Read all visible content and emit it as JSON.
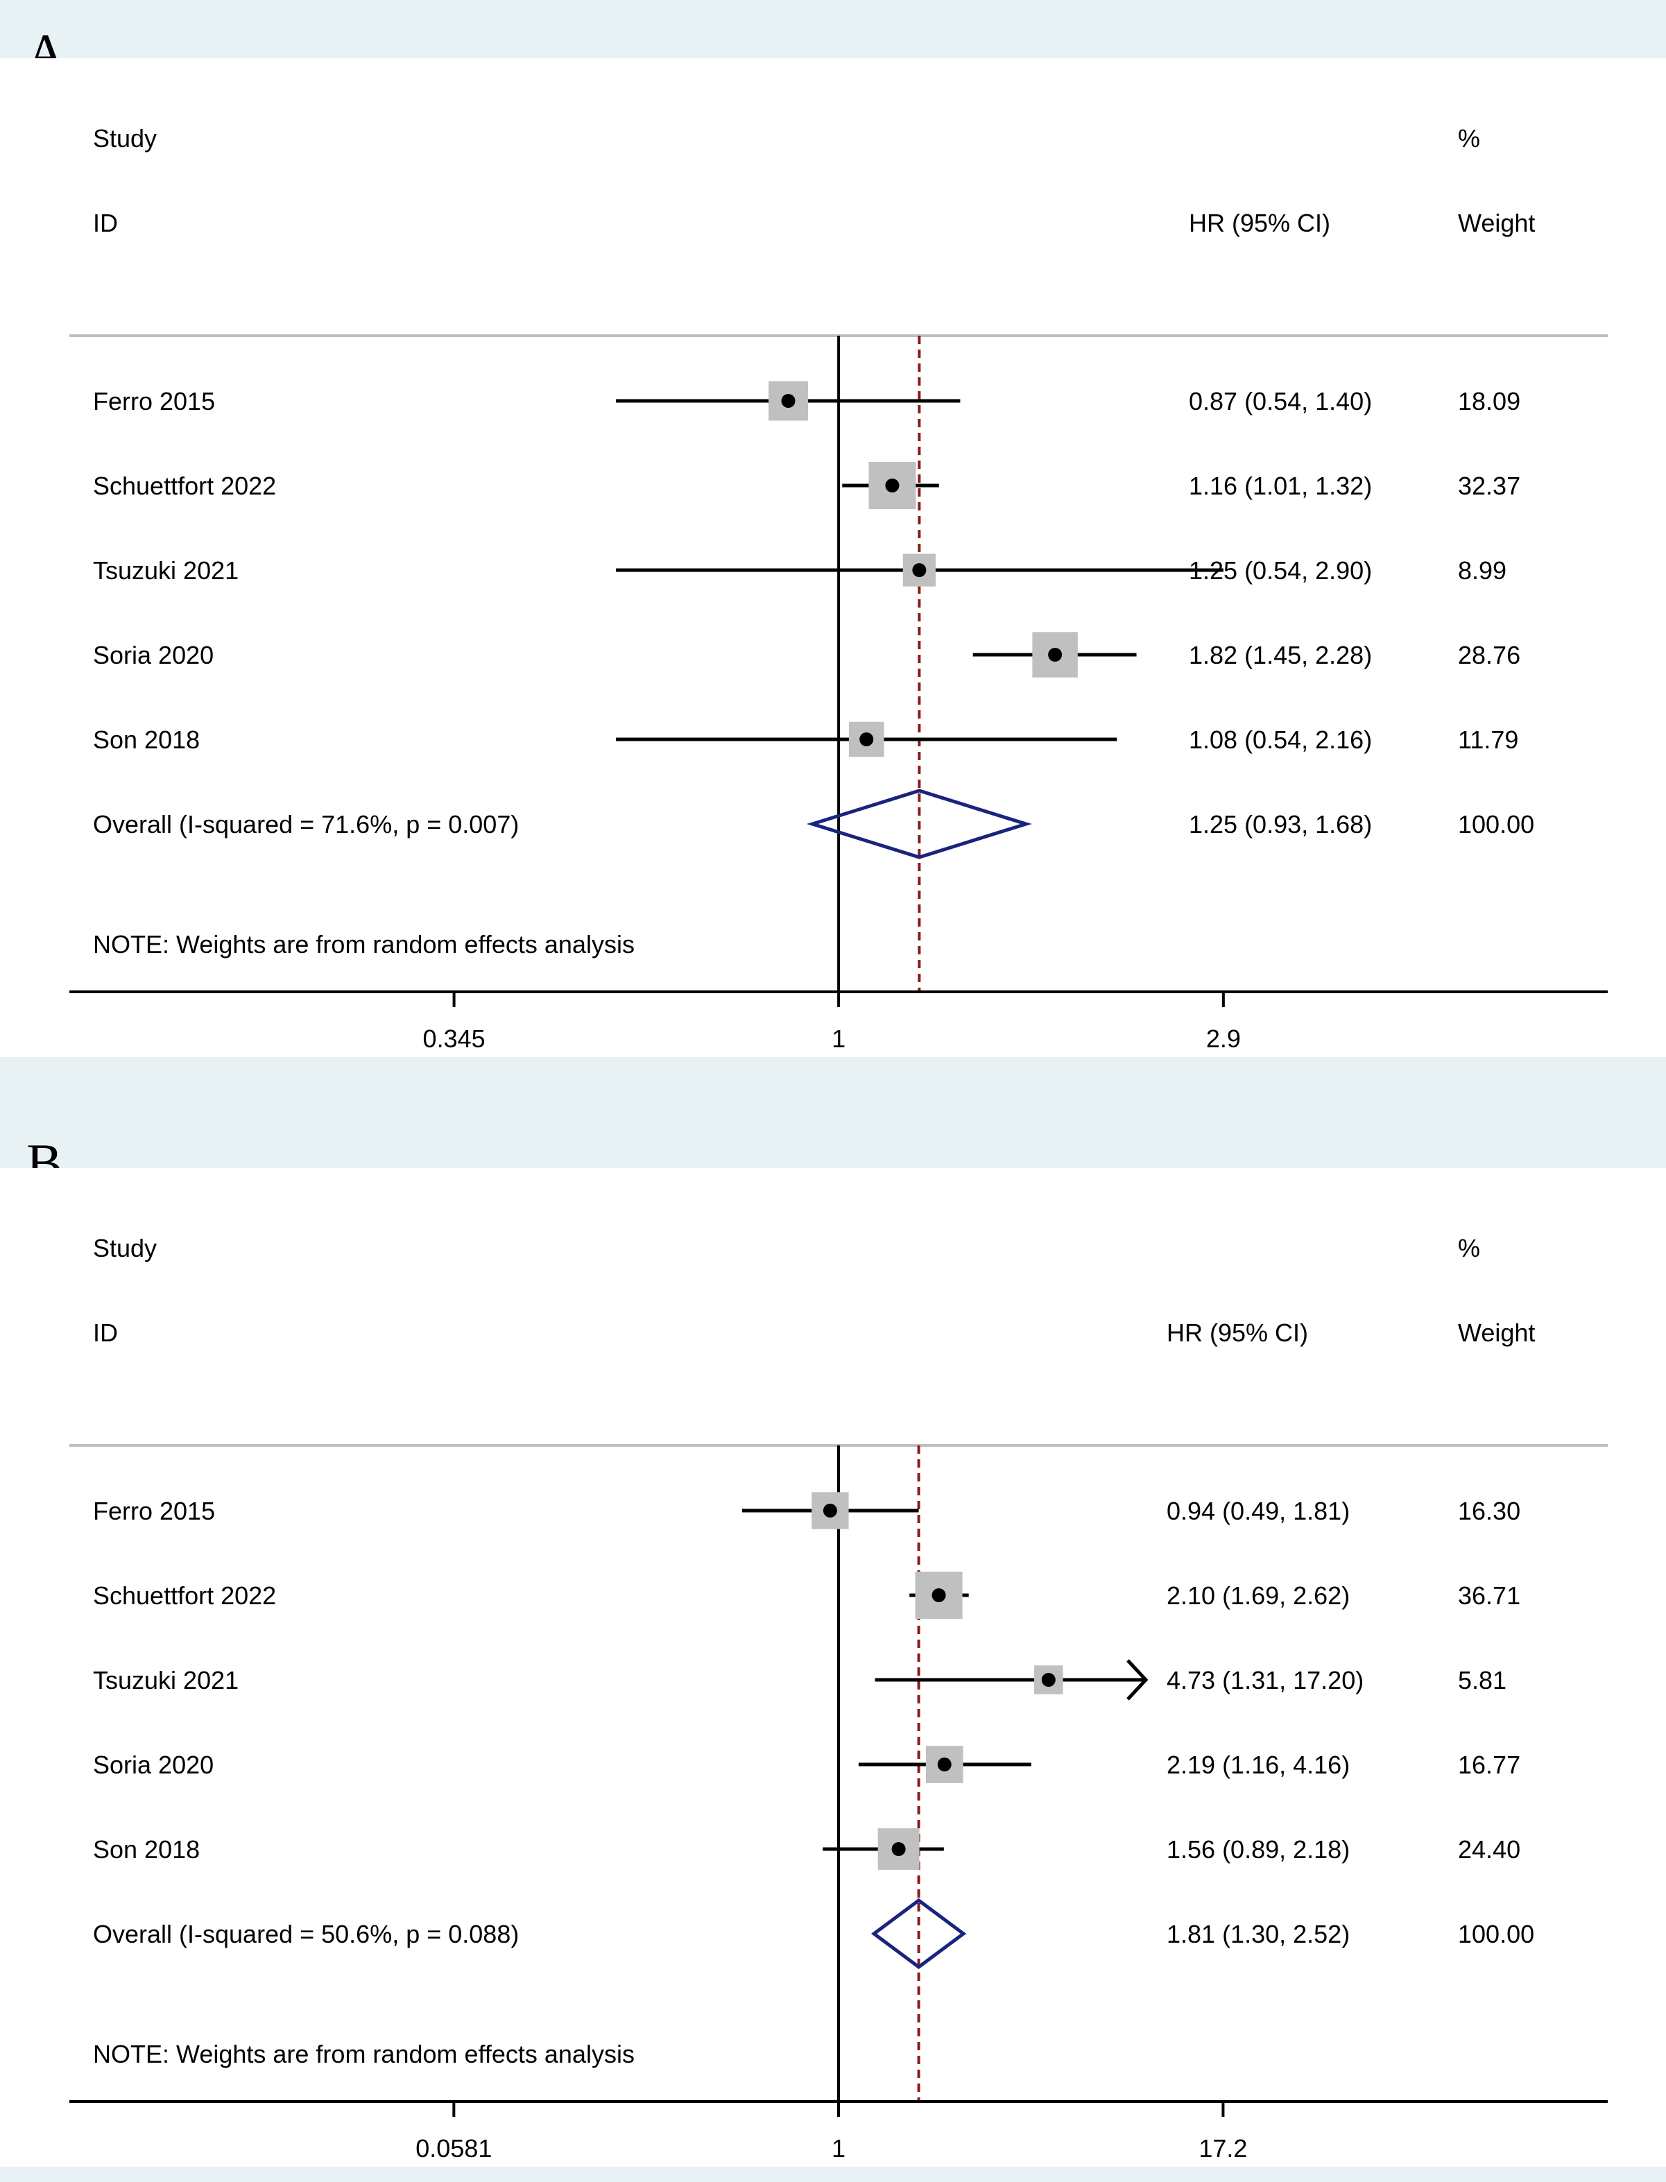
{
  "chart_data": [
    {
      "type": "forest",
      "panel_label": "A",
      "header": {
        "study": "Study",
        "id": "ID",
        "effect": "HR (95% CI)",
        "weight_pct": "%",
        "weight": "Weight"
      },
      "x_scale": "log",
      "xlim": [
        0.119,
        8.4
      ],
      "x_ticks": [
        "0.345",
        "1",
        "2.9"
      ],
      "null_line": 1,
      "studies": [
        {
          "name": "Ferro 2015",
          "hr": 0.87,
          "lo": 0.54,
          "hi": 1.4,
          "ci_text": "0.87 (0.54, 1.40)",
          "weight_text": "18.09",
          "weight": 18.09
        },
        {
          "name": "Schuettfort 2022",
          "hr": 1.16,
          "lo": 1.01,
          "hi": 1.32,
          "ci_text": "1.16 (1.01, 1.32)",
          "weight_text": "32.37",
          "weight": 32.37
        },
        {
          "name": "Tsuzuki 2021",
          "hr": 1.25,
          "lo": 0.54,
          "hi": 2.9,
          "ci_text": "1.25 (0.54, 2.90)",
          "weight_text": "8.99",
          "weight": 8.99
        },
        {
          "name": "Soria 2020",
          "hr": 1.82,
          "lo": 1.45,
          "hi": 2.28,
          "ci_text": "1.82 (1.45, 2.28)",
          "weight_text": "28.76",
          "weight": 28.76
        },
        {
          "name": "Son 2018",
          "hr": 1.08,
          "lo": 0.54,
          "hi": 2.16,
          "ci_text": "1.08 (0.54, 2.16)",
          "weight_text": "11.79",
          "weight": 11.79
        }
      ],
      "overall": {
        "label": "Overall  (I-squared = 71.6%, p = 0.007)",
        "hr": 1.25,
        "lo": 0.93,
        "hi": 1.68,
        "ci_text": "1.25 (0.93, 1.68)",
        "weight_text": "100.00"
      },
      "note": "NOTE: Weights are from random effects analysis"
    },
    {
      "type": "forest",
      "panel_label": "B",
      "header": {
        "study": "Study",
        "id": "ID",
        "effect": "HR (95% CI)",
        "weight_pct": "%",
        "weight": "Weight"
      },
      "x_scale": "log",
      "xlim": [
        0.00338,
        296
      ],
      "x_ticks": [
        "0.0581",
        "1",
        "17.2"
      ],
      "null_line": 1,
      "studies": [
        {
          "name": "Ferro 2015",
          "hr": 0.94,
          "lo": 0.49,
          "hi": 1.81,
          "ci_text": "0.94 (0.49, 1.81)",
          "weight_text": "16.30",
          "weight": 16.3
        },
        {
          "name": "Schuettfort 2022",
          "hr": 2.1,
          "lo": 1.69,
          "hi": 2.62,
          "ci_text": "2.10 (1.69, 2.62)",
          "weight_text": "36.71",
          "weight": 36.71
        },
        {
          "name": "Tsuzuki 2021",
          "hr": 4.73,
          "lo": 1.31,
          "hi": 17.2,
          "ci_text": "4.73 (1.31, 17.20)",
          "weight_text": "5.81",
          "weight": 5.81,
          "arrow_right": true
        },
        {
          "name": "Soria 2020",
          "hr": 2.19,
          "lo": 1.16,
          "hi": 4.16,
          "ci_text": "2.19 (1.16, 4.16)",
          "weight_text": "16.77",
          "weight": 16.77
        },
        {
          "name": "Son 2018",
          "hr": 1.56,
          "lo": 0.89,
          "hi": 2.18,
          "ci_text": "1.56 (0.89, 2.18)",
          "weight_text": "24.40",
          "weight": 24.4
        }
      ],
      "overall": {
        "label": "Overall  (I-squared = 50.6%, p = 0.088)",
        "hr": 1.81,
        "lo": 1.3,
        "hi": 2.52,
        "ci_text": "1.81 (1.30, 2.52)",
        "weight_text": "100.00"
      },
      "note": "NOTE: Weights are from random effects analysis"
    }
  ],
  "colors": {
    "background": "#e8f1f3",
    "plot_bg": "#ffffff",
    "box": "#c0c0c0",
    "diamond": "#1a237e",
    "ref_line": "#8b1a1a",
    "separator": "#bfbfbf"
  }
}
